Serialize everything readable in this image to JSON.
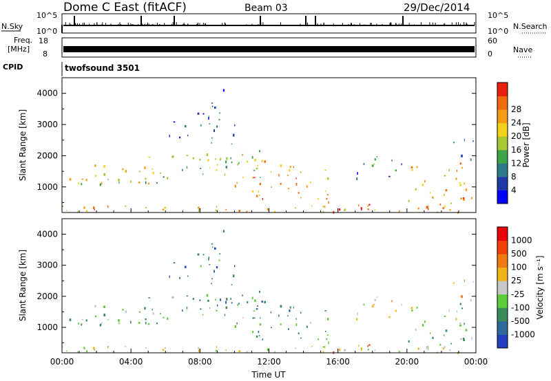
{
  "header": {
    "station": "Dome C East (fitACF)",
    "beam": "Beam 03",
    "date": "29/Dec/2014"
  },
  "panels": {
    "nsky": {
      "label": "N.Sky",
      "top": "10^5",
      "bottom": "10^0"
    },
    "nsearch": {
      "label": "N.Search",
      "top": "10^5",
      "bottom": "10^0"
    },
    "freq": {
      "label_line1": "Freq.",
      "label_line2": "[MHz]",
      "top": "18",
      "bottom": "8"
    },
    "nave": {
      "label": "Nave",
      "top": "60",
      "bottom": "0"
    },
    "cpid": {
      "label": "CPID",
      "value": "twofsound 3501"
    }
  },
  "chart_data": [
    {
      "type": "heatmap",
      "title": "",
      "xlabel": "",
      "ylabel": "Slant Range [km]",
      "x_ticks": [
        "00:00",
        "04:00",
        "08:00",
        "12:00",
        "16:00",
        "20:00",
        "00:00"
      ],
      "y_ticks": [
        "1000",
        "2000",
        "3000",
        "4000"
      ],
      "xlim_hours": [
        0,
        24
      ],
      "ylim_km": [
        180,
        4500
      ],
      "colorbar": {
        "label": "Power [dB]",
        "ticks": [
          "4",
          "8",
          "12",
          "16",
          "20",
          "24",
          "28"
        ],
        "colors": [
          "#0000ff",
          "#1e3aa8",
          "#2f7a8a",
          "#3ea44a",
          "#a6c832",
          "#f2d21c",
          "#f59c14",
          "#f06a10",
          "#e8200e"
        ]
      }
    },
    {
      "type": "heatmap",
      "title": "",
      "xlabel": "Time UT",
      "ylabel": "Slant Range [km]",
      "x_ticks": [
        "00:00",
        "04:00",
        "08:00",
        "12:00",
        "16:00",
        "20:00",
        "00:00"
      ],
      "y_ticks": [
        "1000",
        "2000",
        "3000",
        "4000"
      ],
      "xlim_hours": [
        0,
        24
      ],
      "ylim_km": [
        180,
        4500
      ],
      "colorbar": {
        "label": "Velocity [m s⁻¹]",
        "ticks": [
          "1000",
          "500",
          "100",
          "25",
          "-25",
          "-100",
          "-500",
          "-1000"
        ],
        "colors": [
          "#2040c0",
          "#2f6a9a",
          "#3a8a5a",
          "#5ccc3a",
          "#c8c8c8",
          "#f0b418",
          "#f07a10",
          "#f04008",
          "#e8000a"
        ]
      }
    }
  ]
}
